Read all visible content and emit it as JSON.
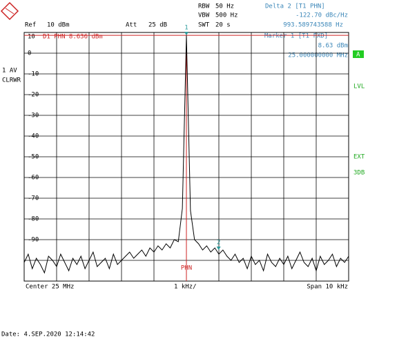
{
  "chart_data": {
    "type": "line",
    "header": {
      "ref": "Ref",
      "ref_level": "10 dBm",
      "att": "Att",
      "att_value": "25 dB",
      "rbw": "RBW",
      "rbw_value": "50 Hz",
      "vbw": "VBW",
      "vbw_value": "500 Hz",
      "swt": "SWT",
      "swt_value": "20 s",
      "delta_title": "Delta 2 [T1 PHN]",
      "delta_level": "-122.70 dBc/Hz",
      "delta_freq": "993.589743588 Hz",
      "marker_title": "Marker 1 [T1 FXD]",
      "marker_level": "8.63 dBm",
      "marker_freq": "25.000000000 MHz",
      "trace_mode": "1 AV",
      "trace_clear": "CLRWR",
      "side_a": "A",
      "side_lvl": "LVL",
      "side_ext": "EXT",
      "side_3db": "3DB"
    },
    "footer": {
      "center": "Center 25 MHz",
      "div": "1 kHz/",
      "span": "Span 10 kHz",
      "date": "Date: 4.SEP.2020 12:14:42"
    },
    "x": [
      -5,
      -4.875,
      -4.75,
      -4.625,
      -4.5,
      -4.375,
      -4.25,
      -4.125,
      -4,
      -3.875,
      -3.75,
      -3.625,
      -3.5,
      -3.375,
      -3.25,
      -3.125,
      -3,
      -2.875,
      -2.75,
      -2.625,
      -2.5,
      -2.375,
      -2.25,
      -2.125,
      -2,
      -1.875,
      -1.75,
      -1.625,
      -1.5,
      -1.375,
      -1.25,
      -1.125,
      -1,
      -0.875,
      -0.75,
      -0.625,
      -0.5,
      -0.375,
      -0.25,
      -0.125,
      0,
      0.125,
      0.25,
      0.375,
      0.5,
      0.625,
      0.75,
      0.875,
      1,
      1.125,
      1.25,
      1.375,
      1.5,
      1.625,
      1.75,
      1.875,
      2,
      2.125,
      2.25,
      2.375,
      2.5,
      2.625,
      2.75,
      2.875,
      3,
      3.125,
      3.25,
      3.375,
      3.5,
      3.625,
      3.75,
      3.875,
      4,
      4.125,
      4.25,
      4.375,
      4.5,
      4.625,
      4.75,
      4.875,
      5
    ],
    "series": [
      {
        "name": "1 AV",
        "color": "#000000",
        "values": [
          -101,
          -97,
          -104,
          -99,
          -102,
          -106,
          -98,
          -100,
          -103,
          -97,
          -101,
          -105,
          -99,
          -102,
          -98,
          -104,
          -100,
          -96,
          -103,
          -101,
          -99,
          -104,
          -97,
          -102,
          -100,
          -98,
          -96,
          -99,
          -97,
          -95,
          -98,
          -94,
          -96,
          -93,
          -95,
          -92,
          -94,
          -90,
          -91,
          -75,
          8.6,
          -76,
          -90,
          -92,
          -95,
          -93,
          -96,
          -94,
          -97,
          -95,
          -98,
          -100,
          -97,
          -101,
          -99,
          -104,
          -98,
          -102,
          -100,
          -105,
          -97,
          -101,
          -103,
          -99,
          -102,
          -98,
          -104,
          -100,
          -96,
          -101,
          -103,
          -99,
          -105,
          -98,
          -102,
          -100,
          -97,
          -103,
          -99,
          -101,
          -98
        ]
      }
    ],
    "xlim": [
      -5,
      5
    ],
    "xticks": [
      -5,
      -4,
      -3,
      -2,
      -1,
      0,
      1,
      2,
      3,
      4,
      5
    ],
    "ylim": [
      -110,
      10
    ],
    "yticks": [
      10,
      0,
      -10,
      -20,
      -30,
      -40,
      -50,
      -60,
      -70,
      -80,
      -90
    ],
    "minor_yticks": [
      -100
    ],
    "grid": true,
    "display_line": {
      "label": "D1 PHN 8.636 dBm",
      "value": 8.636,
      "color": "#cc2222"
    },
    "center_line": {
      "label": "PHN",
      "x": 0,
      "color": "#cc2222"
    },
    "markers": [
      {
        "label": "1",
        "x": 0,
        "y": 8.63
      },
      {
        "label": "2",
        "x": 0.99359,
        "y": -95
      }
    ],
    "marker_color": "#2a9a9a"
  }
}
